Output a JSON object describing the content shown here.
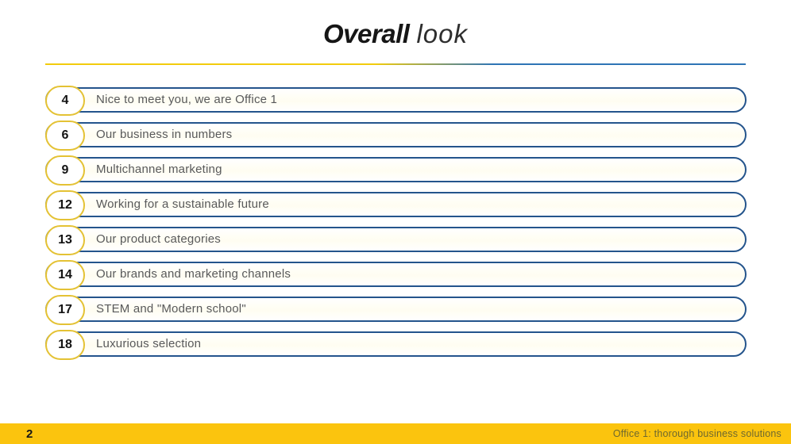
{
  "title": {
    "emphasis": "Overall",
    "rest": "look"
  },
  "toc": {
    "items": [
      {
        "page": "4",
        "label": "Nice to meet you, we are Office 1"
      },
      {
        "page": "6",
        "label": "Our business in numbers"
      },
      {
        "page": "9",
        "label": "Multichannel marketing"
      },
      {
        "page": "12",
        "label": "Working for a sustainable future"
      },
      {
        "page": "13",
        "label": "Our product categories"
      },
      {
        "page": "14",
        "label": "Our brands and marketing channels"
      },
      {
        "page": "17",
        "label": "STEM and \"Modern school\""
      },
      {
        "page": "18",
        "label": "Luxurious selection"
      }
    ]
  },
  "footer": {
    "page_number": "2",
    "tagline": "Office 1: thorough business solutions"
  },
  "colors": {
    "accent_yellow": "#F2CC0C",
    "accent_blue": "#2E74B5",
    "row_border": "#24548C",
    "badge_border": "#E4C234",
    "footer_bg": "#FBC40E"
  }
}
